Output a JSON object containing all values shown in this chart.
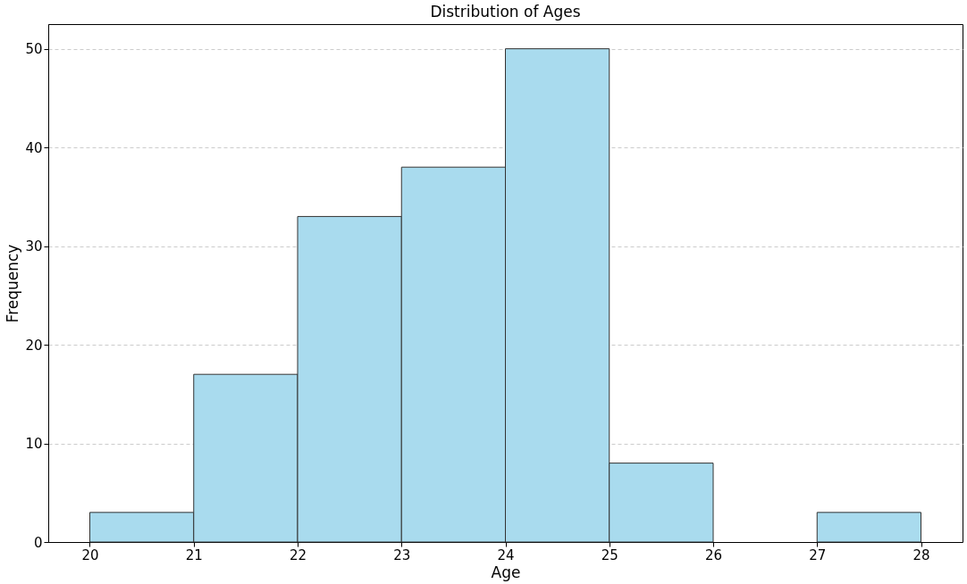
{
  "chart_data": {
    "type": "histogram",
    "title": "Distribution of Ages",
    "xlabel": "Age",
    "ylabel": "Frequency",
    "bins": [
      20,
      21,
      22,
      23,
      24,
      25,
      26,
      27,
      28
    ],
    "values": [
      3,
      17,
      33,
      38,
      50,
      8,
      0,
      3
    ],
    "color": "#a9dbee",
    "xlim": [
      19.6,
      28.4
    ],
    "xticks": [
      20,
      21,
      22,
      23,
      24,
      25,
      26,
      27,
      28
    ],
    "ylim": [
      0,
      52.5
    ],
    "yticks": [
      0,
      10,
      20,
      30,
      40,
      50
    ],
    "grid": "y"
  }
}
